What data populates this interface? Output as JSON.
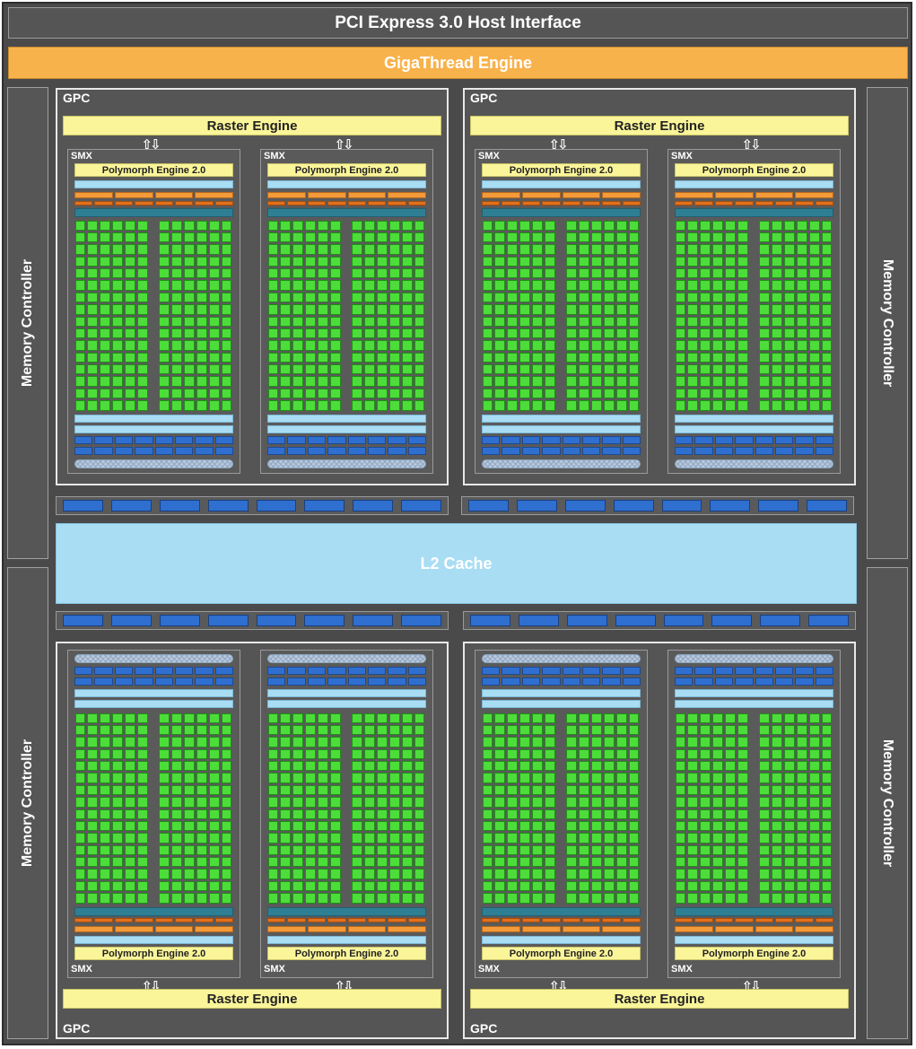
{
  "host_interface": "PCI Express 3.0 Host Interface",
  "thread_engine": "GigaThread Engine",
  "memory_controller_label": "Memory Controller",
  "l2_cache": "L2 Cache",
  "gpc_label": "GPC",
  "raster_engine_label": "Raster Engine",
  "smx_label": "SMX",
  "polymorph_engine_label": "Polymorph Engine 2.0",
  "gpc_count": 4,
  "smx_per_gpc": 2,
  "colors": {
    "background": "#4a4a4a",
    "giga_thread": "#f8b24c",
    "raster_polymorph": "#fbf59a",
    "cuda_core": "#4ddd3a",
    "l2_cache": "#a8ddf4",
    "memory_blocks": "#2f6fcf"
  }
}
